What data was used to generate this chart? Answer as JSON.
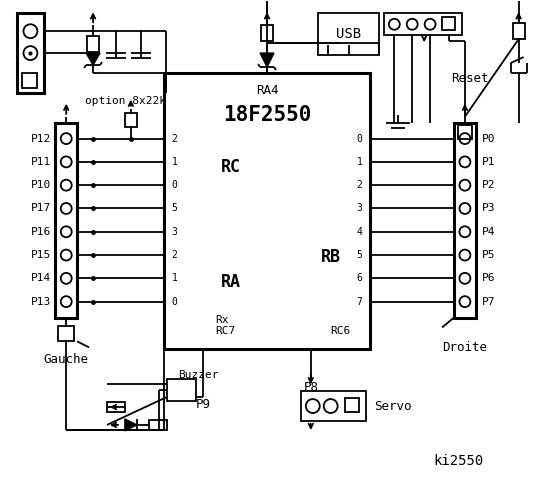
{
  "title": "ki2550",
  "bg_color": "#ffffff",
  "ic_label": "18F2550",
  "ic_sublabel": "RA4",
  "rc_label": "RC",
  "ra_label": "RA",
  "rb_label": "RB",
  "rc_pins": [
    "2",
    "1",
    "0",
    "5",
    "3",
    "2",
    "1",
    "0"
  ],
  "rb_pins": [
    "0",
    "1",
    "2",
    "3",
    "4",
    "5",
    "6",
    "7"
  ],
  "left_labels": [
    "P12",
    "P11",
    "P10",
    "P17",
    "P16",
    "P15",
    "P14",
    "P13"
  ],
  "right_labels": [
    "P0",
    "P1",
    "P2",
    "P3",
    "P4",
    "P5",
    "P6",
    "P7"
  ],
  "rx_label": "Rx",
  "rc7_label": "RC7",
  "rc6_label": "RC6",
  "option_label": "option 8x22k",
  "gauche_label": "Gauche",
  "droite_label": "Droite",
  "buzzer_label": "Buzzer",
  "p8_label": "P8",
  "p9_label": "P9",
  "servo_label": "Servo",
  "reset_label": "Reset",
  "usb_label": "USB"
}
